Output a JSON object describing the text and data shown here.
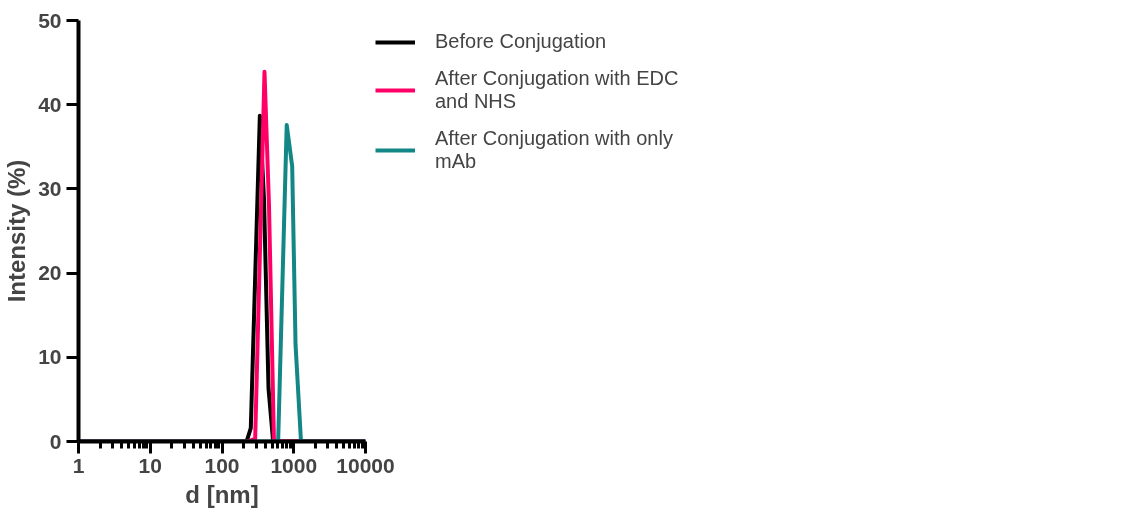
{
  "chart_data": {
    "type": "line",
    "xlabel": "d [nm]",
    "ylabel": "Intensity (%)",
    "log": "x",
    "xlim": [
      1,
      10000
    ],
    "xticks": [
      1,
      10,
      100,
      1000,
      10000
    ],
    "ylim": [
      0,
      50
    ],
    "yticks": [
      0,
      10,
      20,
      30,
      40,
      50
    ],
    "grid": false,
    "legend": "right",
    "marker": "none",
    "line_style": "solid",
    "series": [
      {
        "name": "Before Conjugation",
        "color": "#000000",
        "x": [
          1,
          220,
          252,
          337,
          385,
          445,
          516,
          10000
        ],
        "values": [
          0,
          0,
          1.6,
          38.7,
          28.8,
          6.3,
          0,
          0
        ]
      },
      {
        "name": "After Conjugation with EDC and NHS",
        "color": "#ff0066",
        "x": [
          1,
          226,
          290,
          391,
          452,
          530,
          10000
        ],
        "values": [
          0,
          0,
          0.3,
          43.9,
          28,
          0,
          0
        ]
      },
      {
        "name": "After Conjugation with only mAb",
        "color": "#138686",
        "x": [
          1,
          606,
          798,
          951,
          1059,
          1262,
          10000
        ],
        "values": [
          0,
          0,
          37.6,
          32.7,
          11.5,
          0,
          0
        ]
      }
    ]
  }
}
